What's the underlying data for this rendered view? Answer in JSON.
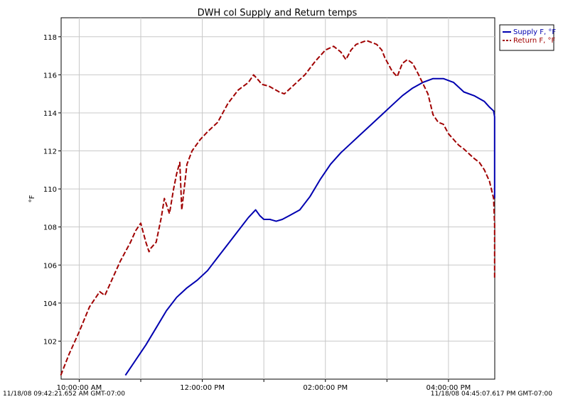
{
  "chart_data": {
    "type": "line",
    "title": "DWH col Supply and Return temps",
    "xlabel": "",
    "ylabel": "°F",
    "x_axis": {
      "kind": "time",
      "start": "09:42:21.652",
      "end": "16:45:07.617",
      "major_ticks": [
        "10:00:00 AM",
        "12:00:00 PM",
        "02:00:00 PM",
        "04:00:00 PM"
      ],
      "start_label": "11/18/08 09:42:21.652 AM GMT-07:00",
      "end_label": "11/18/08 04:45:07.617 PM GMT-07:00"
    },
    "ylim": [
      100,
      119
    ],
    "yticks": [
      102,
      104,
      106,
      108,
      110,
      112,
      114,
      116,
      118
    ],
    "grid": true,
    "legend": {
      "placement": "top-right"
    },
    "series": [
      {
        "name": "Supply F, °F",
        "color": "#0000b0",
        "style": "solid",
        "x": [
          "10:45",
          "10:55",
          "11:05",
          "11:15",
          "11:25",
          "11:35",
          "11:45",
          "11:55",
          "12:05",
          "12:15",
          "12:25",
          "12:35",
          "12:45",
          "12:52",
          "12:56",
          "13:00",
          "13:06",
          "13:12",
          "13:18",
          "13:25",
          "13:35",
          "13:45",
          "13:55",
          "14:05",
          "14:15",
          "14:25",
          "14:35",
          "14:45",
          "14:55",
          "15:05",
          "15:15",
          "15:25",
          "15:35",
          "15:45",
          "15:55",
          "16:05",
          "16:15",
          "16:25",
          "16:35",
          "16:40",
          "16:44",
          "16:45",
          "16:45",
          "16:45"
        ],
        "y": [
          100.2,
          101.0,
          101.8,
          102.7,
          103.6,
          104.3,
          104.8,
          105.2,
          105.7,
          106.4,
          107.1,
          107.8,
          108.5,
          108.9,
          108.6,
          108.4,
          108.4,
          108.3,
          108.4,
          108.6,
          108.9,
          109.6,
          110.5,
          111.3,
          111.9,
          112.4,
          112.9,
          113.4,
          113.9,
          114.4,
          114.9,
          115.3,
          115.6,
          115.8,
          115.8,
          115.6,
          115.1,
          114.9,
          114.6,
          114.3,
          114.1,
          113.8,
          113.4,
          109.5
        ]
      },
      {
        "name": "Return F, °F",
        "color": "#a00000",
        "style": "dashed",
        "x": [
          "09:42",
          "09:50",
          "10:00",
          "10:10",
          "10:20",
          "10:25",
          "10:30",
          "10:40",
          "10:50",
          "10:55",
          "11:00",
          "11:05",
          "11:08",
          "11:10",
          "11:15",
          "11:20",
          "11:23",
          "11:28",
          "11:32",
          "11:35",
          "11:38",
          "11:40",
          "11:45",
          "11:50",
          "11:58",
          "12:05",
          "12:15",
          "12:25",
          "12:35",
          "12:45",
          "12:50",
          "12:55",
          "12:58",
          "13:05",
          "13:15",
          "13:20",
          "13:30",
          "13:40",
          "13:50",
          "14:00",
          "14:08",
          "14:15",
          "14:20",
          "14:25",
          "14:30",
          "14:40",
          "14:50",
          "14:55",
          "14:58",
          "15:05",
          "15:10",
          "15:15",
          "15:20",
          "15:25",
          "15:30",
          "15:40",
          "15:45",
          "15:50",
          "15:55",
          "16:00",
          "16:05",
          "16:10",
          "16:15",
          "16:25",
          "16:30",
          "16:35",
          "16:40",
          "16:44",
          "16:45",
          "16:45",
          "16:45"
        ],
        "y": [
          100.2,
          101.3,
          102.5,
          103.8,
          104.6,
          104.4,
          105.0,
          106.2,
          107.2,
          107.8,
          108.2,
          107.2,
          106.7,
          106.9,
          107.2,
          108.5,
          109.5,
          108.7,
          110.0,
          110.8,
          111.4,
          108.9,
          111.3,
          112.0,
          112.6,
          113.0,
          113.5,
          114.5,
          115.2,
          115.6,
          116.0,
          115.7,
          115.5,
          115.4,
          115.1,
          115.0,
          115.5,
          116.0,
          116.7,
          117.3,
          117.5,
          117.2,
          116.8,
          117.3,
          117.6,
          117.8,
          117.6,
          117.3,
          116.9,
          116.2,
          115.9,
          116.6,
          116.8,
          116.6,
          116.1,
          115.0,
          113.9,
          113.5,
          113.4,
          112.9,
          112.6,
          112.3,
          112.1,
          111.6,
          111.4,
          111.0,
          110.4,
          109.5,
          108.1,
          106.8,
          105.3
        ]
      }
    ]
  }
}
